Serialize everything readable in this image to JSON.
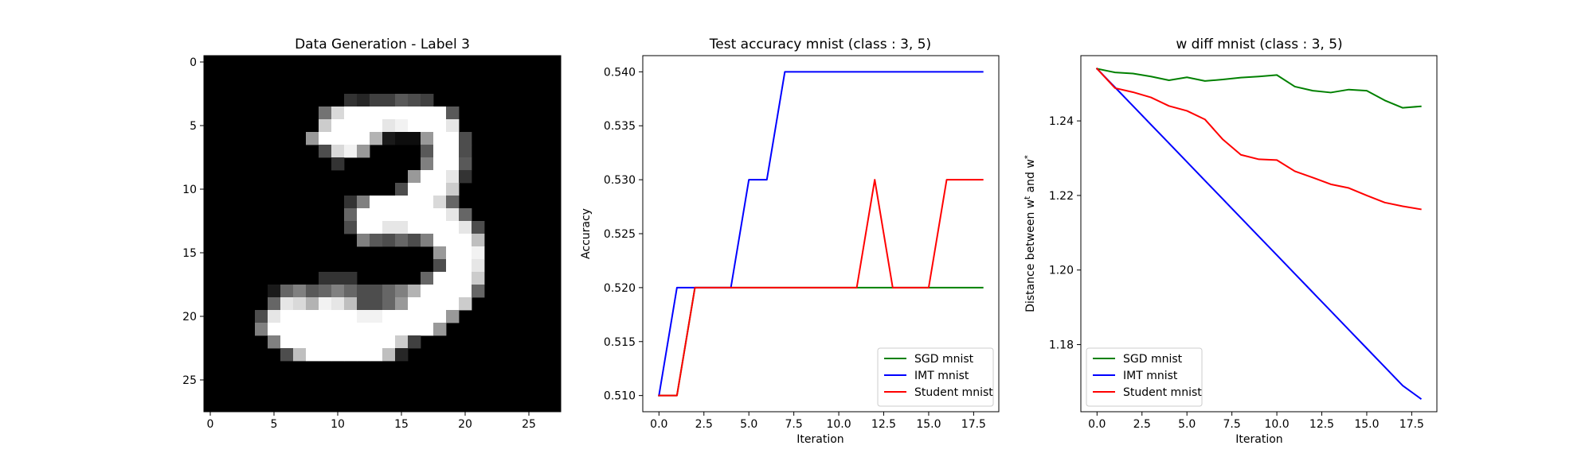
{
  "chart_data": [
    {
      "type": "heatmap",
      "title": "Data Generation - Label 3",
      "xlabel": "",
      "ylabel": "",
      "xlim": [
        -0.5,
        27.5
      ],
      "ylim": [
        27.5,
        -0.5
      ],
      "xticks": [
        0,
        5,
        10,
        15,
        20,
        25
      ],
      "yticks": [
        0,
        5,
        10,
        15,
        20,
        25
      ],
      "colormap": "gray",
      "rows": 28,
      "cols": 28,
      "nonzero_pixels": [
        [
          3,
          11,
          0.2
        ],
        [
          3,
          12,
          0.15
        ],
        [
          3,
          13,
          0.25
        ],
        [
          3,
          14,
          0.25
        ],
        [
          3,
          15,
          0.35
        ],
        [
          3,
          16,
          0.3
        ],
        [
          3,
          17,
          0.25
        ],
        [
          4,
          9,
          0.45
        ],
        [
          4,
          10,
          0.85
        ],
        [
          4,
          11,
          1
        ],
        [
          4,
          12,
          1
        ],
        [
          4,
          13,
          1
        ],
        [
          4,
          14,
          1
        ],
        [
          4,
          15,
          1
        ],
        [
          4,
          16,
          1
        ],
        [
          4,
          17,
          1
        ],
        [
          4,
          18,
          1
        ],
        [
          4,
          19,
          0.35
        ],
        [
          5,
          9,
          0.8
        ],
        [
          5,
          10,
          1
        ],
        [
          5,
          11,
          1
        ],
        [
          5,
          12,
          1
        ],
        [
          5,
          13,
          1
        ],
        [
          5,
          14,
          0.9
        ],
        [
          5,
          15,
          0.95
        ],
        [
          5,
          16,
          1
        ],
        [
          5,
          17,
          1
        ],
        [
          5,
          18,
          1
        ],
        [
          5,
          19,
          0.9
        ],
        [
          6,
          8,
          0.6
        ],
        [
          6,
          9,
          1
        ],
        [
          6,
          10,
          1
        ],
        [
          6,
          11,
          1
        ],
        [
          6,
          12,
          1
        ],
        [
          6,
          13,
          0.7
        ],
        [
          6,
          14,
          0.1
        ],
        [
          6,
          15,
          0.05
        ],
        [
          6,
          16,
          0.05
        ],
        [
          6,
          17,
          0.6
        ],
        [
          6,
          18,
          1
        ],
        [
          6,
          19,
          1
        ],
        [
          6,
          20,
          0.3
        ],
        [
          7,
          9,
          0.3
        ],
        [
          7,
          10,
          0.85
        ],
        [
          7,
          11,
          0.95
        ],
        [
          7,
          12,
          0.6
        ],
        [
          7,
          17,
          0.35
        ],
        [
          7,
          18,
          1
        ],
        [
          7,
          19,
          1
        ],
        [
          7,
          20,
          0.3
        ],
        [
          8,
          10,
          0.2
        ],
        [
          8,
          17,
          0.5
        ],
        [
          8,
          18,
          1
        ],
        [
          8,
          19,
          1
        ],
        [
          8,
          20,
          0.35
        ],
        [
          9,
          16,
          0.6
        ],
        [
          9,
          17,
          1
        ],
        [
          9,
          18,
          1
        ],
        [
          9,
          19,
          0.9
        ],
        [
          9,
          20,
          0.2
        ],
        [
          10,
          15,
          0.3
        ],
        [
          10,
          16,
          1
        ],
        [
          10,
          17,
          1
        ],
        [
          10,
          18,
          1
        ],
        [
          10,
          19,
          0.8
        ],
        [
          11,
          11,
          0.2
        ],
        [
          11,
          12,
          0.5
        ],
        [
          11,
          13,
          1
        ],
        [
          11,
          14,
          1
        ],
        [
          11,
          15,
          1
        ],
        [
          11,
          16,
          1
        ],
        [
          11,
          17,
          1
        ],
        [
          11,
          18,
          0.85
        ],
        [
          11,
          19,
          0.4
        ],
        [
          12,
          11,
          0.4
        ],
        [
          12,
          12,
          1
        ],
        [
          12,
          13,
          1
        ],
        [
          12,
          14,
          1
        ],
        [
          12,
          15,
          1
        ],
        [
          12,
          16,
          1
        ],
        [
          12,
          17,
          1
        ],
        [
          12,
          18,
          1
        ],
        [
          12,
          19,
          0.9
        ],
        [
          12,
          20,
          0.4
        ],
        [
          13,
          11,
          0.3
        ],
        [
          13,
          12,
          1
        ],
        [
          13,
          13,
          1
        ],
        [
          13,
          14,
          0.9
        ],
        [
          13,
          15,
          0.9
        ],
        [
          13,
          16,
          1
        ],
        [
          13,
          17,
          1
        ],
        [
          13,
          18,
          1
        ],
        [
          13,
          19,
          1
        ],
        [
          13,
          20,
          0.9
        ],
        [
          13,
          21,
          0.3
        ],
        [
          14,
          12,
          0.5
        ],
        [
          14,
          13,
          0.35
        ],
        [
          14,
          14,
          0.3
        ],
        [
          14,
          15,
          0.4
        ],
        [
          14,
          16,
          0.3
        ],
        [
          14,
          17,
          0.5
        ],
        [
          14,
          18,
          1
        ],
        [
          14,
          19,
          1
        ],
        [
          14,
          20,
          1
        ],
        [
          14,
          21,
          0.75
        ],
        [
          15,
          18,
          0.6
        ],
        [
          15,
          19,
          1
        ],
        [
          15,
          20,
          1
        ],
        [
          15,
          21,
          0.95
        ],
        [
          16,
          18,
          0.3
        ],
        [
          16,
          19,
          1
        ],
        [
          16,
          20,
          1
        ],
        [
          16,
          21,
          0.9
        ],
        [
          17,
          9,
          0.2
        ],
        [
          17,
          10,
          0.2
        ],
        [
          17,
          11,
          0.2
        ],
        [
          17,
          17,
          0.4
        ],
        [
          17,
          18,
          1
        ],
        [
          17,
          19,
          1
        ],
        [
          17,
          20,
          1
        ],
        [
          17,
          21,
          0.8
        ],
        [
          18,
          5,
          0.1
        ],
        [
          18,
          6,
          0.4
        ],
        [
          18,
          7,
          0.5
        ],
        [
          18,
          8,
          0.35
        ],
        [
          18,
          9,
          0.4
        ],
        [
          18,
          10,
          0.5
        ],
        [
          18,
          11,
          0.4
        ],
        [
          18,
          12,
          0.3
        ],
        [
          18,
          13,
          0.3
        ],
        [
          18,
          14,
          0.4
        ],
        [
          18,
          15,
          0.5
        ],
        [
          18,
          16,
          0.7
        ],
        [
          18,
          17,
          1
        ],
        [
          18,
          18,
          1
        ],
        [
          18,
          19,
          1
        ],
        [
          18,
          20,
          1
        ],
        [
          18,
          21,
          0.4
        ],
        [
          19,
          5,
          0.4
        ],
        [
          19,
          6,
          0.9
        ],
        [
          19,
          7,
          0.85
        ],
        [
          19,
          8,
          0.7
        ],
        [
          19,
          9,
          0.95
        ],
        [
          19,
          10,
          0.9
        ],
        [
          19,
          11,
          0.75
        ],
        [
          19,
          12,
          0.3
        ],
        [
          19,
          13,
          0.3
        ],
        [
          19,
          14,
          0.4
        ],
        [
          19,
          15,
          0.6
        ],
        [
          19,
          16,
          1
        ],
        [
          19,
          17,
          1
        ],
        [
          19,
          18,
          1
        ],
        [
          19,
          19,
          1
        ],
        [
          19,
          20,
          0.8
        ],
        [
          20,
          4,
          0.3
        ],
        [
          20,
          5,
          0.9
        ],
        [
          20,
          6,
          1
        ],
        [
          20,
          7,
          1
        ],
        [
          20,
          8,
          1
        ],
        [
          20,
          9,
          1
        ],
        [
          20,
          10,
          1
        ],
        [
          20,
          11,
          1
        ],
        [
          20,
          12,
          0.95
        ],
        [
          20,
          13,
          0.95
        ],
        [
          20,
          14,
          1
        ],
        [
          20,
          15,
          1
        ],
        [
          20,
          16,
          1
        ],
        [
          20,
          17,
          1
        ],
        [
          20,
          18,
          1
        ],
        [
          20,
          19,
          0.6
        ],
        [
          21,
          4,
          0.5
        ],
        [
          21,
          5,
          1
        ],
        [
          21,
          6,
          1
        ],
        [
          21,
          7,
          1
        ],
        [
          21,
          8,
          1
        ],
        [
          21,
          9,
          1
        ],
        [
          21,
          10,
          1
        ],
        [
          21,
          11,
          1
        ],
        [
          21,
          12,
          1
        ],
        [
          21,
          13,
          1
        ],
        [
          21,
          14,
          1
        ],
        [
          21,
          15,
          1
        ],
        [
          21,
          16,
          1
        ],
        [
          21,
          17,
          1
        ],
        [
          21,
          18,
          0.6
        ],
        [
          22,
          5,
          0.5
        ],
        [
          22,
          6,
          1
        ],
        [
          22,
          7,
          1
        ],
        [
          22,
          8,
          1
        ],
        [
          22,
          9,
          1
        ],
        [
          22,
          10,
          1
        ],
        [
          22,
          11,
          1
        ],
        [
          22,
          12,
          1
        ],
        [
          22,
          13,
          1
        ],
        [
          22,
          14,
          1
        ],
        [
          22,
          15,
          0.8
        ],
        [
          22,
          16,
          0.25
        ],
        [
          23,
          6,
          0.3
        ],
        [
          23,
          7,
          0.75
        ],
        [
          23,
          8,
          1
        ],
        [
          23,
          9,
          1
        ],
        [
          23,
          10,
          1
        ],
        [
          23,
          11,
          1
        ],
        [
          23,
          12,
          1
        ],
        [
          23,
          13,
          1
        ],
        [
          23,
          14,
          0.75
        ],
        [
          23,
          15,
          0.15
        ]
      ]
    },
    {
      "type": "line",
      "title": "Test accuracy mnist (class : 3, 5)",
      "xlabel": "Iteration",
      "ylabel": "Accuracy",
      "xlim": [
        -0.9,
        18.9
      ],
      "ylim": [
        0.5085,
        0.5415
      ],
      "xticks": [
        0.0,
        2.5,
        5.0,
        7.5,
        10.0,
        12.5,
        15.0,
        17.5
      ],
      "xtick_labels": [
        "0.0",
        "2.5",
        "5.0",
        "7.5",
        "10.0",
        "12.5",
        "15.0",
        "17.5"
      ],
      "yticks": [
        0.51,
        0.515,
        0.52,
        0.525,
        0.53,
        0.535,
        0.54
      ],
      "ytick_labels": [
        "0.510",
        "0.515",
        "0.520",
        "0.525",
        "0.530",
        "0.535",
        "0.540"
      ],
      "legend_position": "lower-right",
      "x": [
        0,
        1,
        2,
        3,
        4,
        5,
        6,
        7,
        8,
        9,
        10,
        11,
        12,
        13,
        14,
        15,
        16,
        17,
        18
      ],
      "series": [
        {
          "name": "SGD mnist",
          "color": "#008000",
          "values": [
            0.51,
            0.51,
            0.52,
            0.52,
            0.52,
            0.52,
            0.52,
            0.52,
            0.52,
            0.52,
            0.52,
            0.52,
            0.52,
            0.52,
            0.52,
            0.52,
            0.52,
            0.52,
            0.52
          ]
        },
        {
          "name": "IMT mnist",
          "color": "#0000ff",
          "values": [
            0.51,
            0.52,
            0.52,
            0.52,
            0.52,
            0.53,
            0.53,
            0.54,
            0.54,
            0.54,
            0.54,
            0.54,
            0.54,
            0.54,
            0.54,
            0.54,
            0.54,
            0.54,
            0.54
          ]
        },
        {
          "name": "Student mnist",
          "color": "#ff0000",
          "values": [
            0.51,
            0.51,
            0.52,
            0.52,
            0.52,
            0.52,
            0.52,
            0.52,
            0.52,
            0.52,
            0.52,
            0.52,
            0.53,
            0.52,
            0.52,
            0.52,
            0.53,
            0.53,
            0.53
          ]
        }
      ]
    },
    {
      "type": "line",
      "title": "w diff mnist (class : 3, 5)",
      "xlabel": "Iteration",
      "ylabel": "Distance between w",
      "ylabel_sup1": "t",
      "ylabel_mid": " and w",
      "ylabel_sup2": "*",
      "xlim": [
        -0.9,
        18.9
      ],
      "ylim": [
        1.162,
        1.2575
      ],
      "xticks": [
        0.0,
        2.5,
        5.0,
        7.5,
        10.0,
        12.5,
        15.0,
        17.5
      ],
      "xtick_labels": [
        "0.0",
        "2.5",
        "5.0",
        "7.5",
        "10.0",
        "12.5",
        "15.0",
        "17.5"
      ],
      "yticks": [
        1.18,
        1.2,
        1.22,
        1.24
      ],
      "ytick_labels": [
        "1.18",
        "1.20",
        "1.22",
        "1.24"
      ],
      "legend_position": "lower-left",
      "x": [
        0,
        1,
        2,
        3,
        4,
        5,
        6,
        7,
        8,
        9,
        10,
        11,
        12,
        13,
        14,
        15,
        16,
        17,
        18
      ],
      "series": [
        {
          "name": "SGD mnist",
          "color": "#008000",
          "values": [
            1.254,
            1.253,
            1.2527,
            1.2519,
            1.2509,
            1.2517,
            1.2507,
            1.2511,
            1.2516,
            1.2519,
            1.2523,
            1.2492,
            1.2481,
            1.2476,
            1.2484,
            1.2481,
            1.2455,
            1.2435,
            1.2439
          ]
        },
        {
          "name": "IMT mnist",
          "color": "#0000ff",
          "values": [
            1.254,
            1.249,
            1.244,
            1.239,
            1.234,
            1.229,
            1.224,
            1.219,
            1.214,
            1.209,
            1.204,
            1.199,
            1.194,
            1.189,
            1.184,
            1.179,
            1.174,
            1.169,
            1.1655
          ]
        },
        {
          "name": "Student mnist",
          "color": "#ff0000",
          "values": [
            1.254,
            1.2488,
            1.2477,
            1.2463,
            1.244,
            1.2427,
            1.2404,
            1.235,
            1.2309,
            1.2297,
            1.2295,
            1.2265,
            1.2248,
            1.223,
            1.222,
            1.22,
            1.2181,
            1.2171,
            1.2163
          ]
        }
      ]
    }
  ]
}
